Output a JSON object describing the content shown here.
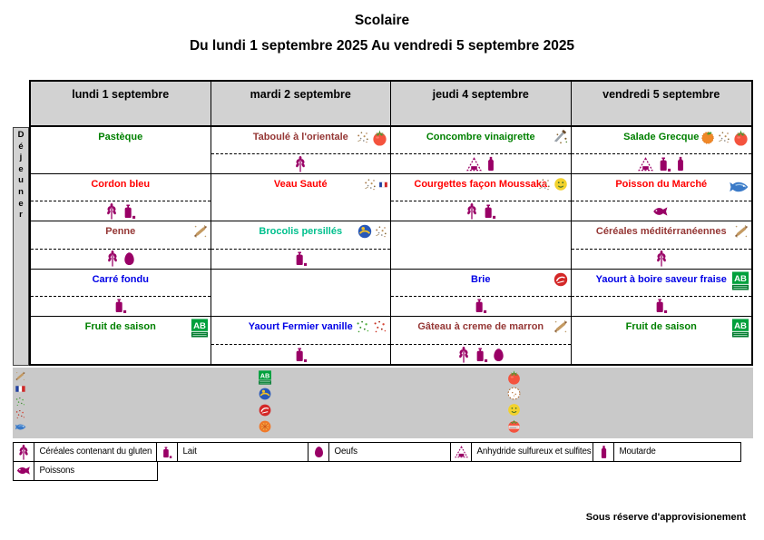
{
  "title": {
    "line1": "Scolaire",
    "line2": "Du lundi 1 septembre 2025 Au vendredi 5 septembre 2025"
  },
  "meal_label": "Déjeuner",
  "meal_letters": [
    "D",
    "é",
    "j",
    "e",
    "u",
    "n",
    "e",
    "r"
  ],
  "columns": [
    "lundi 1 septembre",
    "mardi 2 septembre",
    "jeudi 4 septembre",
    "vendredi 5 septembre"
  ],
  "colors": {
    "green": "#008000",
    "red": "#FF0000",
    "maroon": "#953735",
    "blue": "#0000E6",
    "teal": "#00C08E",
    "allergen_magenta": "#990066",
    "header_gray": "#D2D2D2",
    "band_gray": "#C9C9C9"
  },
  "menu": {
    "rows": [
      {
        "cells": [
          {
            "name": "Pastèque",
            "color": "#008000",
            "deco": [],
            "allergens": []
          },
          {
            "name": "Taboulé à l'orientale",
            "color": "#953735",
            "deco": [
              "spices",
              "tomato"
            ],
            "allergens": [
              "gluten"
            ]
          },
          {
            "name": "Concombre vinaigrette",
            "color": "#008000",
            "deco": [
              "crudites"
            ],
            "allergens": [
              "sulfites",
              "moutarde"
            ]
          },
          {
            "name": "Salade Grecque",
            "color": "#008000",
            "deco": [
              "orange",
              "spices",
              "tomato"
            ],
            "allergens": [
              "sulfites",
              "lait",
              "moutarde"
            ]
          }
        ]
      },
      {
        "cells": [
          {
            "name": "Cordon bleu",
            "color": "#FF0000",
            "deco": [],
            "allergens": [
              "gluten",
              "lait"
            ]
          },
          {
            "name": "Veau Sauté",
            "color": "#FF0000",
            "deco": [
              "spices",
              "french-flag"
            ],
            "allergens": []
          },
          {
            "name": "Courgettes façon Moussaka",
            "color": "#FF0000",
            "deco": [
              "spices",
              "smiley"
            ],
            "allergens": [
              "gluten",
              "lait"
            ]
          },
          {
            "name": "Poisson du Marché",
            "color": "#FF0000",
            "deco": [
              "blue-fish"
            ],
            "allergens": [
              "poissons"
            ]
          }
        ]
      },
      {
        "cells": [
          {
            "name": "Penne",
            "color": "#953735",
            "deco": [
              "homemade"
            ],
            "allergens": [
              "gluten",
              "oeufs"
            ]
          },
          {
            "name": "Brocolis persillés",
            "color": "#00C08E",
            "deco": [
              "globe-logo",
              "spices"
            ],
            "allergens": [
              "lait"
            ]
          },
          {
            "name": "",
            "color": "",
            "deco": [],
            "allergens": []
          },
          {
            "name": "Céréales méditérranéennes",
            "color": "#953735",
            "deco": [
              "homemade"
            ],
            "allergens": [
              "gluten"
            ]
          }
        ]
      },
      {
        "cells": [
          {
            "name": "Carré fondu",
            "color": "#0000E6",
            "deco": [],
            "allergens": [
              "lait"
            ]
          },
          {
            "name": "",
            "color": "",
            "deco": [],
            "allergens": []
          },
          {
            "name": "Brie",
            "color": "#0000E6",
            "deco": [
              "red-label"
            ],
            "allergens": [
              "lait"
            ]
          },
          {
            "name": "Yaourt à boire saveur fraise",
            "color": "#0000E6",
            "deco": [
              "ab-organic"
            ],
            "allergens": [
              "lait"
            ]
          }
        ]
      },
      {
        "cells": [
          {
            "name": "Fruit de saison",
            "color": "#008000",
            "deco": [
              "ab-organic"
            ],
            "allergens": []
          },
          {
            "name": "Yaourt Fermier vanille",
            "color": "#0000E6",
            "deco": [
              "green-speckle",
              "red-speckle"
            ],
            "allergens": [
              "lait"
            ]
          },
          {
            "name": "Gâteau à creme de marron",
            "color": "#953735",
            "deco": [
              "homemade"
            ],
            "allergens": [
              "gluten",
              "lait",
              "oeufs"
            ]
          },
          {
            "name": "Fruit de saison",
            "color": "#008000",
            "deco": [
              "ab-organic"
            ],
            "allergens": []
          }
        ]
      }
    ]
  },
  "band": {
    "left_icons": [
      "homemade",
      "french-flag",
      "green-speckle",
      "red-speckle",
      "blue-fish"
    ],
    "mardi_icons": [
      "ab-organic",
      "globe-logo",
      "red-label",
      "orange-logo"
    ],
    "jeudi_icons": [
      "tomato",
      "dotted-circle",
      "smiley",
      "tomato-label"
    ]
  },
  "legend": {
    "row1": [
      {
        "label": "Céréales contenant du gluten",
        "icons": [
          "gluten"
        ]
      },
      {
        "label": "Lait",
        "icons": [
          "lait"
        ]
      },
      {
        "label": "Oeufs",
        "icons": [
          "oeufs"
        ]
      },
      {
        "label": "Anhydride sulfureux et sulfites",
        "icons": [
          "sulfites"
        ]
      },
      {
        "label": "Moutarde",
        "icons": [
          "moutarde"
        ]
      }
    ],
    "row2": [
      {
        "label": "Poissons",
        "icons": [
          "poissons"
        ]
      }
    ]
  },
  "footer": {
    "note": "Sous réserve d'approvisionement"
  }
}
